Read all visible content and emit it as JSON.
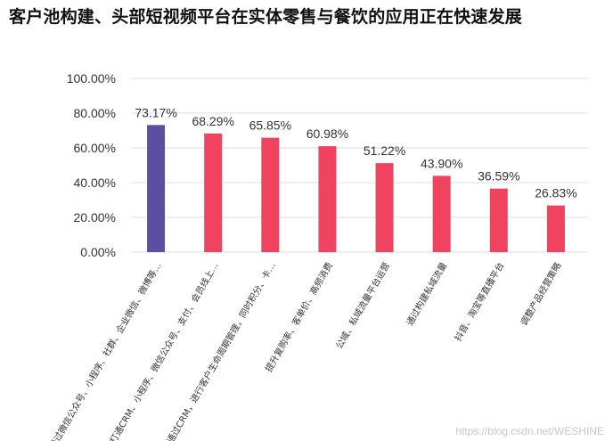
{
  "page": {
    "title": "客户池构建、头部短视频平台在实体零售与餐饮的应用正在快速发展",
    "watermark": "https://blog.csdn.net/WESHINE"
  },
  "colors": {
    "highlight_bar": "#5a4fa2",
    "bar": "#f0435f",
    "grid": "#dcdcdc",
    "text": "#333333"
  },
  "chart_data": {
    "type": "bar",
    "ylim": [
      0,
      100
    ],
    "yticks": [
      "0.00%",
      "20.00%",
      "40.00%",
      "60.00%",
      "80.00%",
      "100.00%"
    ],
    "grid": true,
    "categories": [
      "通过微信公众号、小程序、社群、企业微信、微博等…",
      "打通CRM、小程序、微信公众号、支付、会员线上…",
      "通过CRM，进行客户生命周期管理，同时积分、卡…",
      "提升复购率、客单价、高频消费",
      "公域、私域流量平台运营",
      "通过构建私域流量",
      "抖音、淘宝等直播平台",
      "调整产品经营策略"
    ],
    "values": [
      73.17,
      68.29,
      65.85,
      60.98,
      51.22,
      43.9,
      36.59,
      26.83
    ],
    "value_labels": [
      "73.17%",
      "68.29%",
      "65.85%",
      "60.98%",
      "51.22%",
      "43.90%",
      "36.59%",
      "26.83%"
    ],
    "highlight_index": 0
  }
}
